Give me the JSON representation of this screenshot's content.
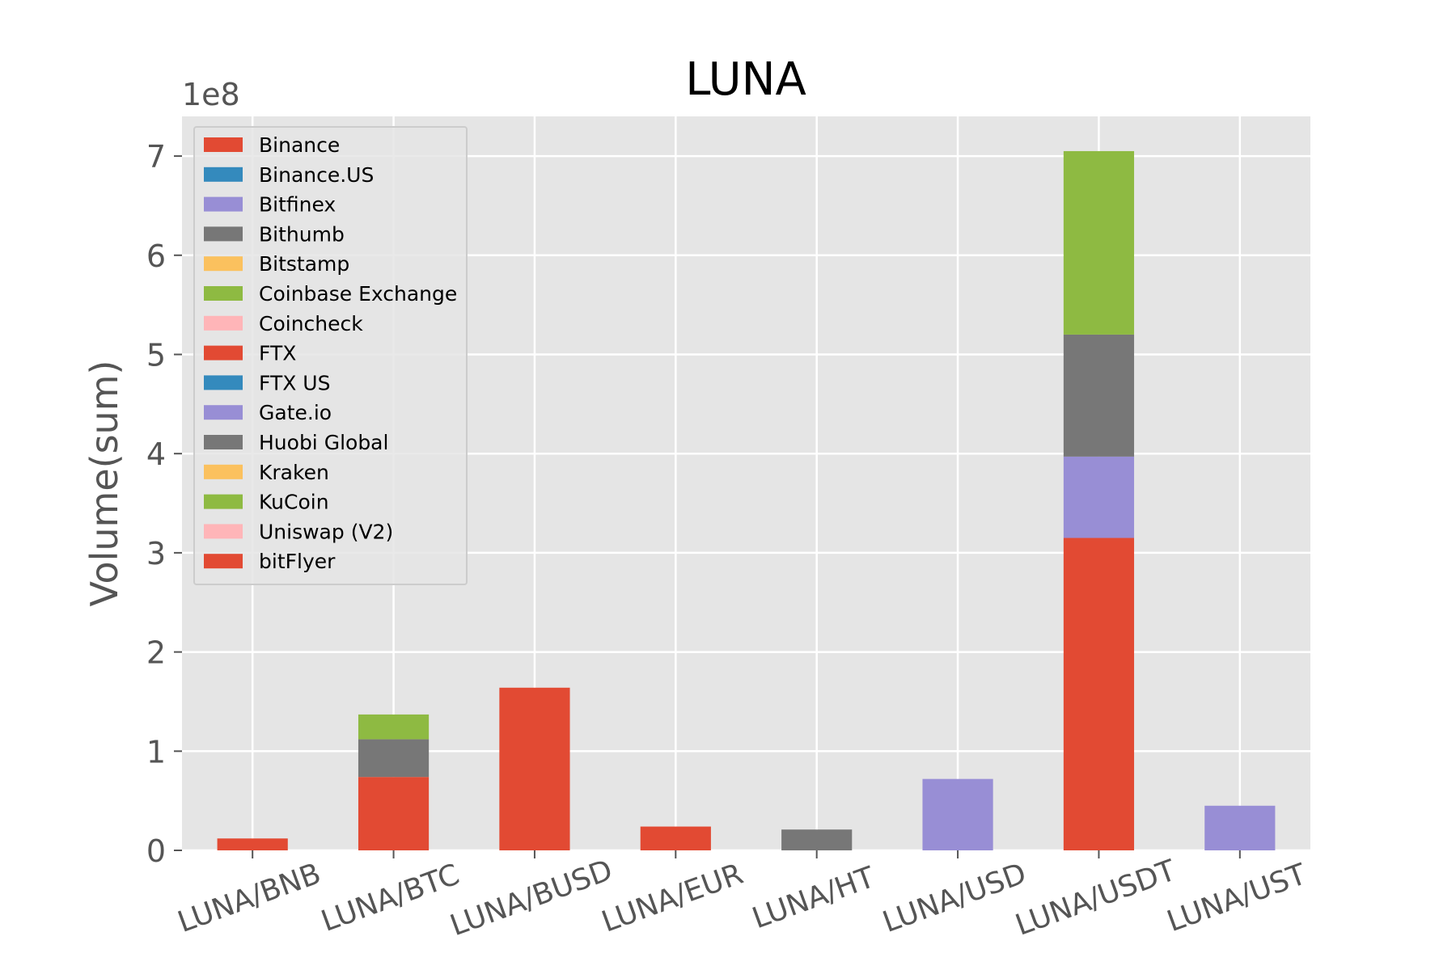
{
  "chart_data": {
    "type": "bar",
    "stacked": true,
    "title": "LUNA",
    "xlabel": "",
    "ylabel": "Volume(sum)",
    "y_scale_label": "1e8",
    "y_scale": 100000000,
    "ylim": [
      0,
      7.4
    ],
    "yticks": [
      0,
      1,
      2,
      3,
      4,
      5,
      6,
      7
    ],
    "grid": true,
    "legend_position": "top-left",
    "categories": [
      "LUNA/BNB",
      "LUNA/BTC",
      "LUNA/BUSD",
      "LUNA/EUR",
      "LUNA/HT",
      "LUNA/USD",
      "LUNA/USDT",
      "LUNA/UST"
    ],
    "series": [
      {
        "name": "Binance",
        "color": "#E24A33",
        "values": [
          0.12,
          0.74,
          1.64,
          0.24,
          0,
          0,
          3.15,
          0
        ]
      },
      {
        "name": "Binance.US",
        "color": "#348ABD",
        "values": [
          0,
          0,
          0,
          0,
          0,
          0,
          0,
          0
        ]
      },
      {
        "name": "Bitfinex",
        "color": "#988ED5",
        "values": [
          0,
          0,
          0,
          0,
          0,
          0,
          0,
          0
        ]
      },
      {
        "name": "Bithumb",
        "color": "#777777",
        "values": [
          0,
          0,
          0,
          0,
          0,
          0,
          0,
          0
        ]
      },
      {
        "name": "Bitstamp",
        "color": "#FBC15E",
        "values": [
          0,
          0,
          0,
          0,
          0,
          0,
          0,
          0
        ]
      },
      {
        "name": "Coinbase Exchange",
        "color": "#8EBA42",
        "values": [
          0,
          0,
          0,
          0,
          0,
          0,
          0,
          0
        ]
      },
      {
        "name": "Coincheck",
        "color": "#FFB5B8",
        "values": [
          0,
          0,
          0,
          0,
          0,
          0,
          0,
          0
        ]
      },
      {
        "name": "FTX",
        "color": "#E24A33",
        "values": [
          0,
          0,
          0,
          0,
          0,
          0,
          0,
          0
        ]
      },
      {
        "name": "FTX US",
        "color": "#348ABD",
        "values": [
          0,
          0,
          0,
          0,
          0,
          0,
          0,
          0
        ]
      },
      {
        "name": "Gate.io",
        "color": "#988ED5",
        "values": [
          0,
          0,
          0,
          0,
          0,
          0,
          0.82,
          0
        ]
      },
      {
        "name": "Huobi Global",
        "color": "#777777",
        "values": [
          0,
          0.38,
          0,
          0,
          0.21,
          0,
          1.23,
          0
        ]
      },
      {
        "name": "Kraken",
        "color": "#FBC15E",
        "values": [
          0,
          0,
          0,
          0,
          0,
          0,
          0,
          0
        ]
      },
      {
        "name": "KuCoin",
        "color": "#8EBA42",
        "values": [
          0,
          0.25,
          0,
          0,
          0,
          0,
          1.85,
          0
        ]
      },
      {
        "name": "Uniswap (V2)",
        "color": "#FFB5B8",
        "values": [
          0,
          0,
          0,
          0,
          0,
          0,
          0,
          0
        ]
      },
      {
        "name": "bitFlyer",
        "color": "#E24A33",
        "values": [
          0,
          0,
          0,
          0,
          0,
          0,
          0,
          0
        ]
      }
    ],
    "extra_series": [
      {
        "name": "Bitfinex",
        "category": "LUNA/USD",
        "value": 0.72,
        "color": "#988ED5"
      },
      {
        "name": "Bitfinex",
        "category": "LUNA/UST",
        "value": 0.45,
        "color": "#988ED5"
      }
    ]
  }
}
